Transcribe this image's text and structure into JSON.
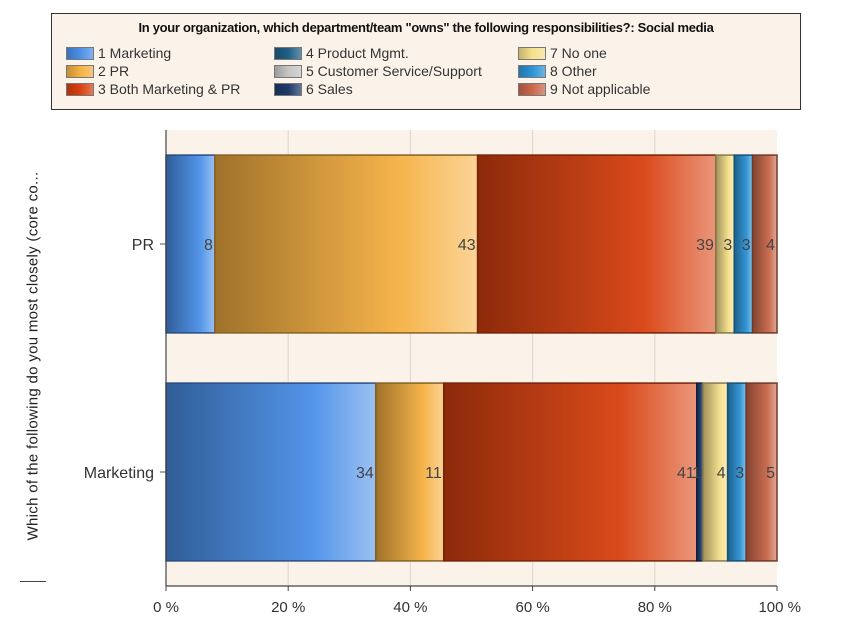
{
  "chart_data": {
    "type": "bar",
    "orientation": "horizontal",
    "stacked": "percent",
    "title": "In your organization, which department/team \"owns\" the following responsibilities?: Social media",
    "ylabel": "Which of the following do you most closely (core co...",
    "xlabel": "",
    "categories": [
      "PR",
      "Marketing"
    ],
    "xlim": [
      0,
      100
    ],
    "x_ticks": [
      "0 %",
      "20 %",
      "40 %",
      "60 %",
      "80 %",
      "100 %"
    ],
    "grid": true,
    "legend_position": "top",
    "series": [
      {
        "name": "1 Marketing",
        "color": "#4a8fe8",
        "values": [
          8,
          34
        ]
      },
      {
        "name": "2 PR",
        "color": "#f5b041",
        "values": [
          43,
          11
        ]
      },
      {
        "name": "3 Both Marketing & PR",
        "color": "#d8400f",
        "values": [
          39,
          41
        ]
      },
      {
        "name": "4 Product Mgmt.",
        "color": "#1f5f86",
        "values": [
          0,
          0
        ]
      },
      {
        "name": "5 Customer Service/Support",
        "color": "#c4c4c4",
        "values": [
          0,
          0
        ]
      },
      {
        "name": "6 Sales",
        "color": "#1d3a6b",
        "values": [
          0,
          1
        ]
      },
      {
        "name": "7 No one",
        "color": "#f6e08a",
        "values": [
          3,
          4
        ]
      },
      {
        "name": "8 Other",
        "color": "#2b93d6",
        "values": [
          3,
          3
        ]
      },
      {
        "name": "9 Not applicable",
        "color": "#c9674a",
        "values": [
          4,
          5
        ]
      }
    ]
  }
}
